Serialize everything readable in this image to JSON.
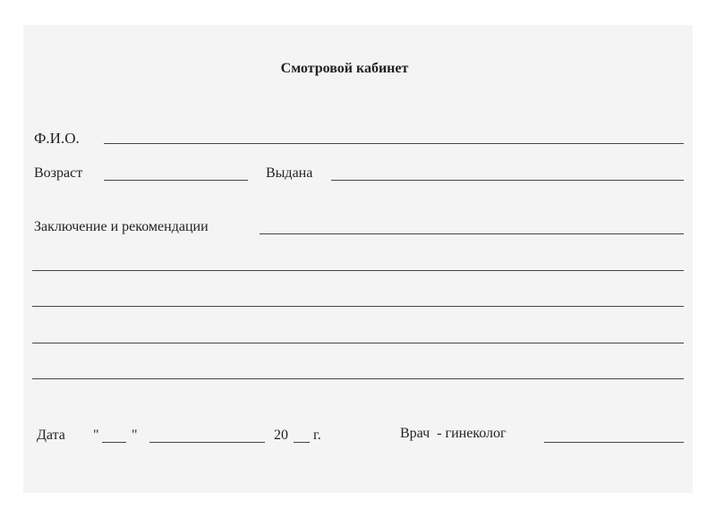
{
  "title": "Смотровой кабинет",
  "fields": {
    "fio": "Ф.И.О.",
    "age": "Возраст",
    "issued": "Выдана",
    "conclusion": "Заключение и рекомендации",
    "date": "Дата",
    "quote_open": "\"",
    "quote_close": "\"",
    "year_prefix": "20",
    "year_suffix": "г.",
    "doctor": "Врач  - гинеколог"
  }
}
